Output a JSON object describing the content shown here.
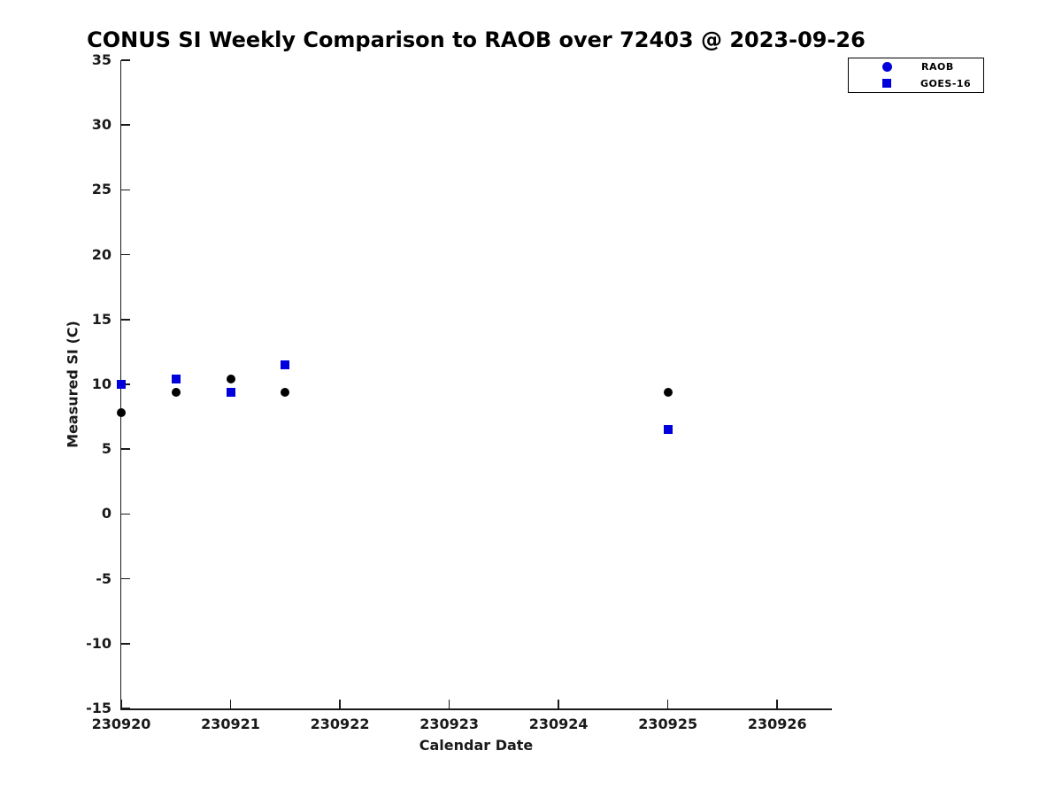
{
  "chart_data": {
    "type": "scatter",
    "title": "CONUS SI Weekly Comparison to RAOB over 72403 @ 2023-09-26",
    "xlabel": "Calendar Date",
    "ylabel": "Measured SI (C)",
    "xlim": [
      230920,
      230926.5
    ],
    "ylim": [
      -15,
      35
    ],
    "xticks": [
      230920,
      230921,
      230922,
      230923,
      230924,
      230925,
      230926
    ],
    "yticks": [
      35,
      30,
      25,
      20,
      15,
      10,
      5,
      0,
      -5,
      -10,
      -15
    ],
    "grid": false,
    "legend_position": "top-right",
    "axis_color": "#1a1a1a",
    "background_color": "#ffffff",
    "series": [
      {
        "name": "RAOB",
        "marker": "circle",
        "color": "#000000",
        "legend_color": "#0000dd",
        "points": [
          [
            230920,
            7.8
          ],
          [
            230920.5,
            9.4
          ],
          [
            230921,
            10.4
          ],
          [
            230921.5,
            9.4
          ],
          [
            230925,
            9.4
          ]
        ]
      },
      {
        "name": "GOES-16",
        "marker": "square",
        "color": "#0000dd",
        "legend_color": "#0000dd",
        "points": [
          [
            230920,
            10.0
          ],
          [
            230920.5,
            10.4
          ],
          [
            230921,
            9.4
          ],
          [
            230921.5,
            11.5
          ],
          [
            230925,
            6.5
          ]
        ]
      }
    ]
  }
}
